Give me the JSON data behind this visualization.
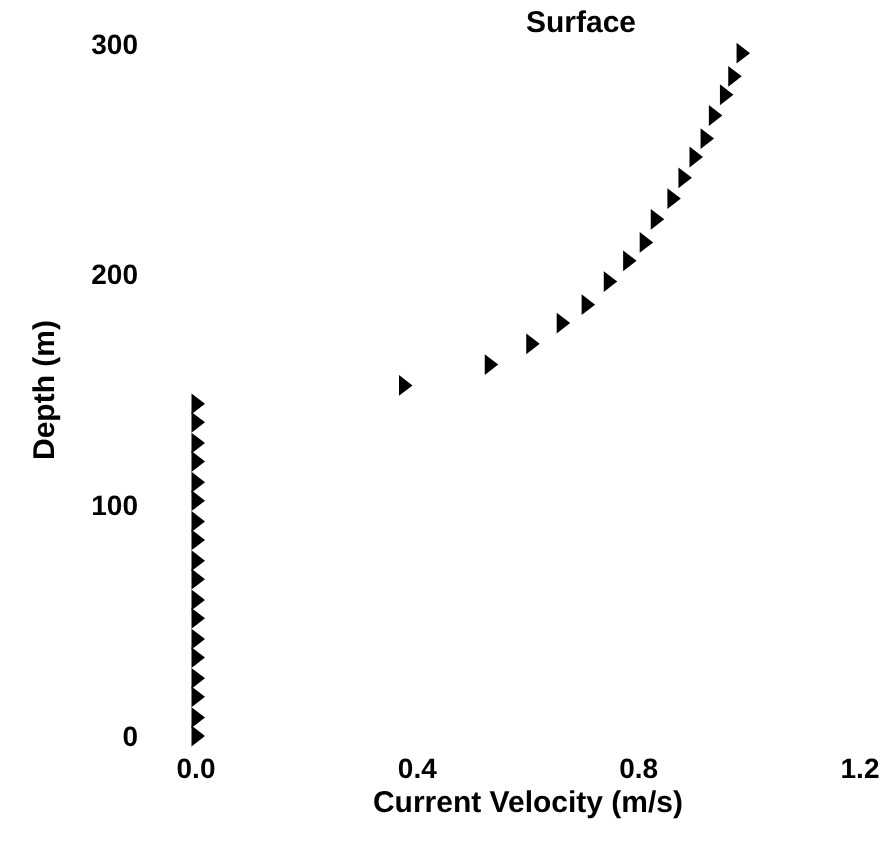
{
  "chart_data": {
    "type": "scatter",
    "xlabel": "Current Velocity (m/s)",
    "ylabel": "Depth (m)",
    "annotations": [
      "Surface"
    ],
    "marker": "triangle",
    "grid": false,
    "xlim": [
      0,
      1.2
    ],
    "ylim": [
      0,
      300
    ],
    "xticks": [
      {
        "value": 0,
        "label": "0.0"
      },
      0.4,
      0.8,
      1.2
    ],
    "yticks": [
      0,
      100,
      200,
      300
    ],
    "series": [
      {
        "color": "#000000",
        "x": [
          0,
          0,
          0,
          0,
          0,
          0,
          0,
          0,
          0,
          0,
          0,
          0,
          0,
          0,
          0,
          0,
          0,
          0
        ],
        "values": [
          0,
          8,
          17,
          25,
          34,
          42,
          51,
          59,
          68,
          76,
          85,
          93,
          102,
          110,
          119,
          127,
          136,
          144
        ]
      },
      {
        "color": "#000000",
        "x": [
          0.375,
          0.53,
          0.605,
          0.66,
          0.705,
          0.745,
          0.78,
          0.81,
          0.83,
          0.86,
          0.88,
          0.9,
          0.92,
          0.935,
          0.955,
          0.97,
          0.985
        ],
        "values": [
          152,
          161,
          170,
          179,
          187,
          197,
          206,
          214,
          224,
          233,
          242,
          251,
          259,
          269,
          278,
          286,
          296
        ]
      }
    ]
  }
}
